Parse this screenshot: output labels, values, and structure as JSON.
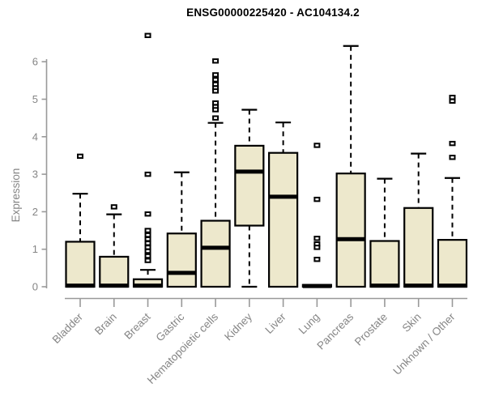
{
  "chart_data": {
    "type": "boxplot",
    "title": "ENSG00000225420 - AC104134.2",
    "ylabel": "Expression",
    "ylim": [
      0,
      6.8
    ],
    "yticks": [
      0,
      1,
      2,
      3,
      4,
      5,
      6
    ],
    "grid": false,
    "legend": "none",
    "categories": [
      "Bladder",
      "Brain",
      "Breast",
      "Gastric",
      "Hematopoietic cells",
      "Kidney",
      "Liver",
      "Lung",
      "Pancreas",
      "Prostate",
      "Skin",
      "Unknown / Other"
    ],
    "series": [
      {
        "category": "Bladder",
        "q1": 0,
        "median": 0.03,
        "q3": 1.2,
        "whisker_low": 0,
        "whisker_high": 2.48,
        "outliers": [
          3.48
        ]
      },
      {
        "category": "Brain",
        "q1": 0,
        "median": 0.03,
        "q3": 0.8,
        "whisker_low": 0,
        "whisker_high": 1.93,
        "outliers": [
          2.13
        ]
      },
      {
        "category": "Breast",
        "q1": 0,
        "median": 0.03,
        "q3": 0.2,
        "whisker_low": 0,
        "whisker_high": 0.45,
        "outliers": [
          6.7,
          3.0,
          1.94,
          1.5,
          1.38,
          1.27,
          1.16,
          1.05,
          0.95,
          0.82,
          0.7
        ]
      },
      {
        "category": "Gastric",
        "q1": 0,
        "median": 0.37,
        "q3": 1.42,
        "whisker_low": 0,
        "whisker_high": 3.05,
        "outliers": []
      },
      {
        "category": "Hematopoietic cells",
        "q1": 0,
        "median": 1.04,
        "q3": 1.76,
        "whisker_low": 0,
        "whisker_high": 4.37,
        "outliers": [
          6.02,
          5.65,
          5.52,
          5.4,
          5.3,
          5.22,
          4.9,
          4.8,
          4.72,
          4.5
        ]
      },
      {
        "category": "Kidney",
        "q1": 1.63,
        "median": 3.07,
        "q3": 3.76,
        "whisker_low": 0,
        "whisker_high": 4.72,
        "outliers": []
      },
      {
        "category": "Liver",
        "q1": 0,
        "median": 2.4,
        "q3": 3.57,
        "whisker_low": 0,
        "whisker_high": 4.38,
        "outliers": []
      },
      {
        "category": "Lung",
        "q1": 0,
        "median": 0.02,
        "q3": 0.05,
        "whisker_low": 0,
        "whisker_high": 0.05,
        "outliers": [
          3.77,
          2.33,
          1.29,
          1.14,
          1.05,
          0.73
        ]
      },
      {
        "category": "Pancreas",
        "q1": 0,
        "median": 1.27,
        "q3": 3.02,
        "whisker_low": 0,
        "whisker_high": 6.42,
        "outliers": []
      },
      {
        "category": "Prostate",
        "q1": 0,
        "median": 0.03,
        "q3": 1.22,
        "whisker_low": 0,
        "whisker_high": 2.88,
        "outliers": []
      },
      {
        "category": "Skin",
        "q1": 0,
        "median": 0.03,
        "q3": 2.1,
        "whisker_low": 0,
        "whisker_high": 3.55,
        "outliers": []
      },
      {
        "category": "Unknown / Other",
        "q1": 0,
        "median": 0.03,
        "q3": 1.25,
        "whisker_low": 0,
        "whisker_high": 2.9,
        "outliers": [
          5.05,
          4.95,
          3.82,
          3.45
        ]
      }
    ],
    "colors": {
      "box_fill": "#EDE8CC",
      "box_stroke": "#000000",
      "median": "#000000",
      "whisker": "#000000",
      "axis": "#999999",
      "tick_text": "#858585",
      "title_text": "#000000",
      "background": "#FFFFFF"
    }
  }
}
